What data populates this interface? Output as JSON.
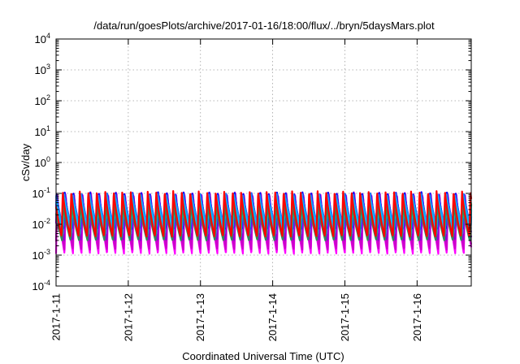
{
  "chart_data": {
    "type": "line",
    "title": "/data/run/goesPlots/archive/2017-01-16/18:00/flux/../bryn/5daysMars.plot",
    "xlabel": "Coordinated Universal Time (UTC)",
    "ylabel": "cSv/day",
    "y_scale": "log",
    "ylim": [
      0.0001,
      10000
    ],
    "y_ticks": [
      {
        "value": 0.0001,
        "base": "10",
        "exp": "-4"
      },
      {
        "value": 0.001,
        "base": "10",
        "exp": "-3"
      },
      {
        "value": 0.01,
        "base": "10",
        "exp": "-2"
      },
      {
        "value": 0.1,
        "base": "10",
        "exp": "-1"
      },
      {
        "value": 1,
        "base": "10",
        "exp": "0"
      },
      {
        "value": 10,
        "base": "10",
        "exp": "1"
      },
      {
        "value": 100,
        "base": "10",
        "exp": "2"
      },
      {
        "value": 1000,
        "base": "10",
        "exp": "3"
      },
      {
        "value": 10000,
        "base": "10",
        "exp": "4"
      }
    ],
    "xlim": [
      "2017-01-11T00:00",
      "2017-01-16T18:00"
    ],
    "x_ticks": [
      {
        "value": "2017-01-11",
        "label": "2017-1-11"
      },
      {
        "value": "2017-01-12",
        "label": "2017-1-12"
      },
      {
        "value": "2017-01-13",
        "label": "2017-1-13"
      },
      {
        "value": "2017-01-14",
        "label": "2017-1-14"
      },
      {
        "value": "2017-01-15",
        "label": "2017-1-15"
      },
      {
        "value": "2017-01-16",
        "label": "2017-1-16"
      }
    ],
    "grid": true,
    "legend": "none",
    "oscillation": {
      "cycles_per_day": 8.5,
      "cycles_total": 49
    },
    "series": [
      {
        "color": "#ff00ff",
        "peak": 0.09,
        "trough": 0.0011,
        "phase": 0.0
      },
      {
        "color": "#cc00cc",
        "peak": 0.1,
        "trough": 0.0015,
        "phase": 0.02
      },
      {
        "color": "#9400d3",
        "peak": 0.1,
        "trough": 0.003,
        "phase": 0.05
      },
      {
        "color": "#8a2be2",
        "peak": 0.11,
        "trough": 0.005,
        "phase": 0.09
      },
      {
        "color": "#0000ff",
        "peak": 0.11,
        "trough": 0.007,
        "phase": 0.13
      },
      {
        "color": "#1e90ff",
        "peak": 0.1,
        "trough": 0.008,
        "phase": 0.17
      },
      {
        "color": "#00bfff",
        "peak": 0.08,
        "trough": 0.006,
        "phase": 0.21
      },
      {
        "color": "#00ced1",
        "peak": 0.06,
        "trough": 0.004,
        "phase": 0.25
      },
      {
        "color": "#2e8b57",
        "peak": 0.05,
        "trough": 0.003,
        "phase": 0.3
      },
      {
        "color": "#ff0000",
        "peak": 0.12,
        "trough": 0.004,
        "phase": 0.35
      }
    ]
  }
}
